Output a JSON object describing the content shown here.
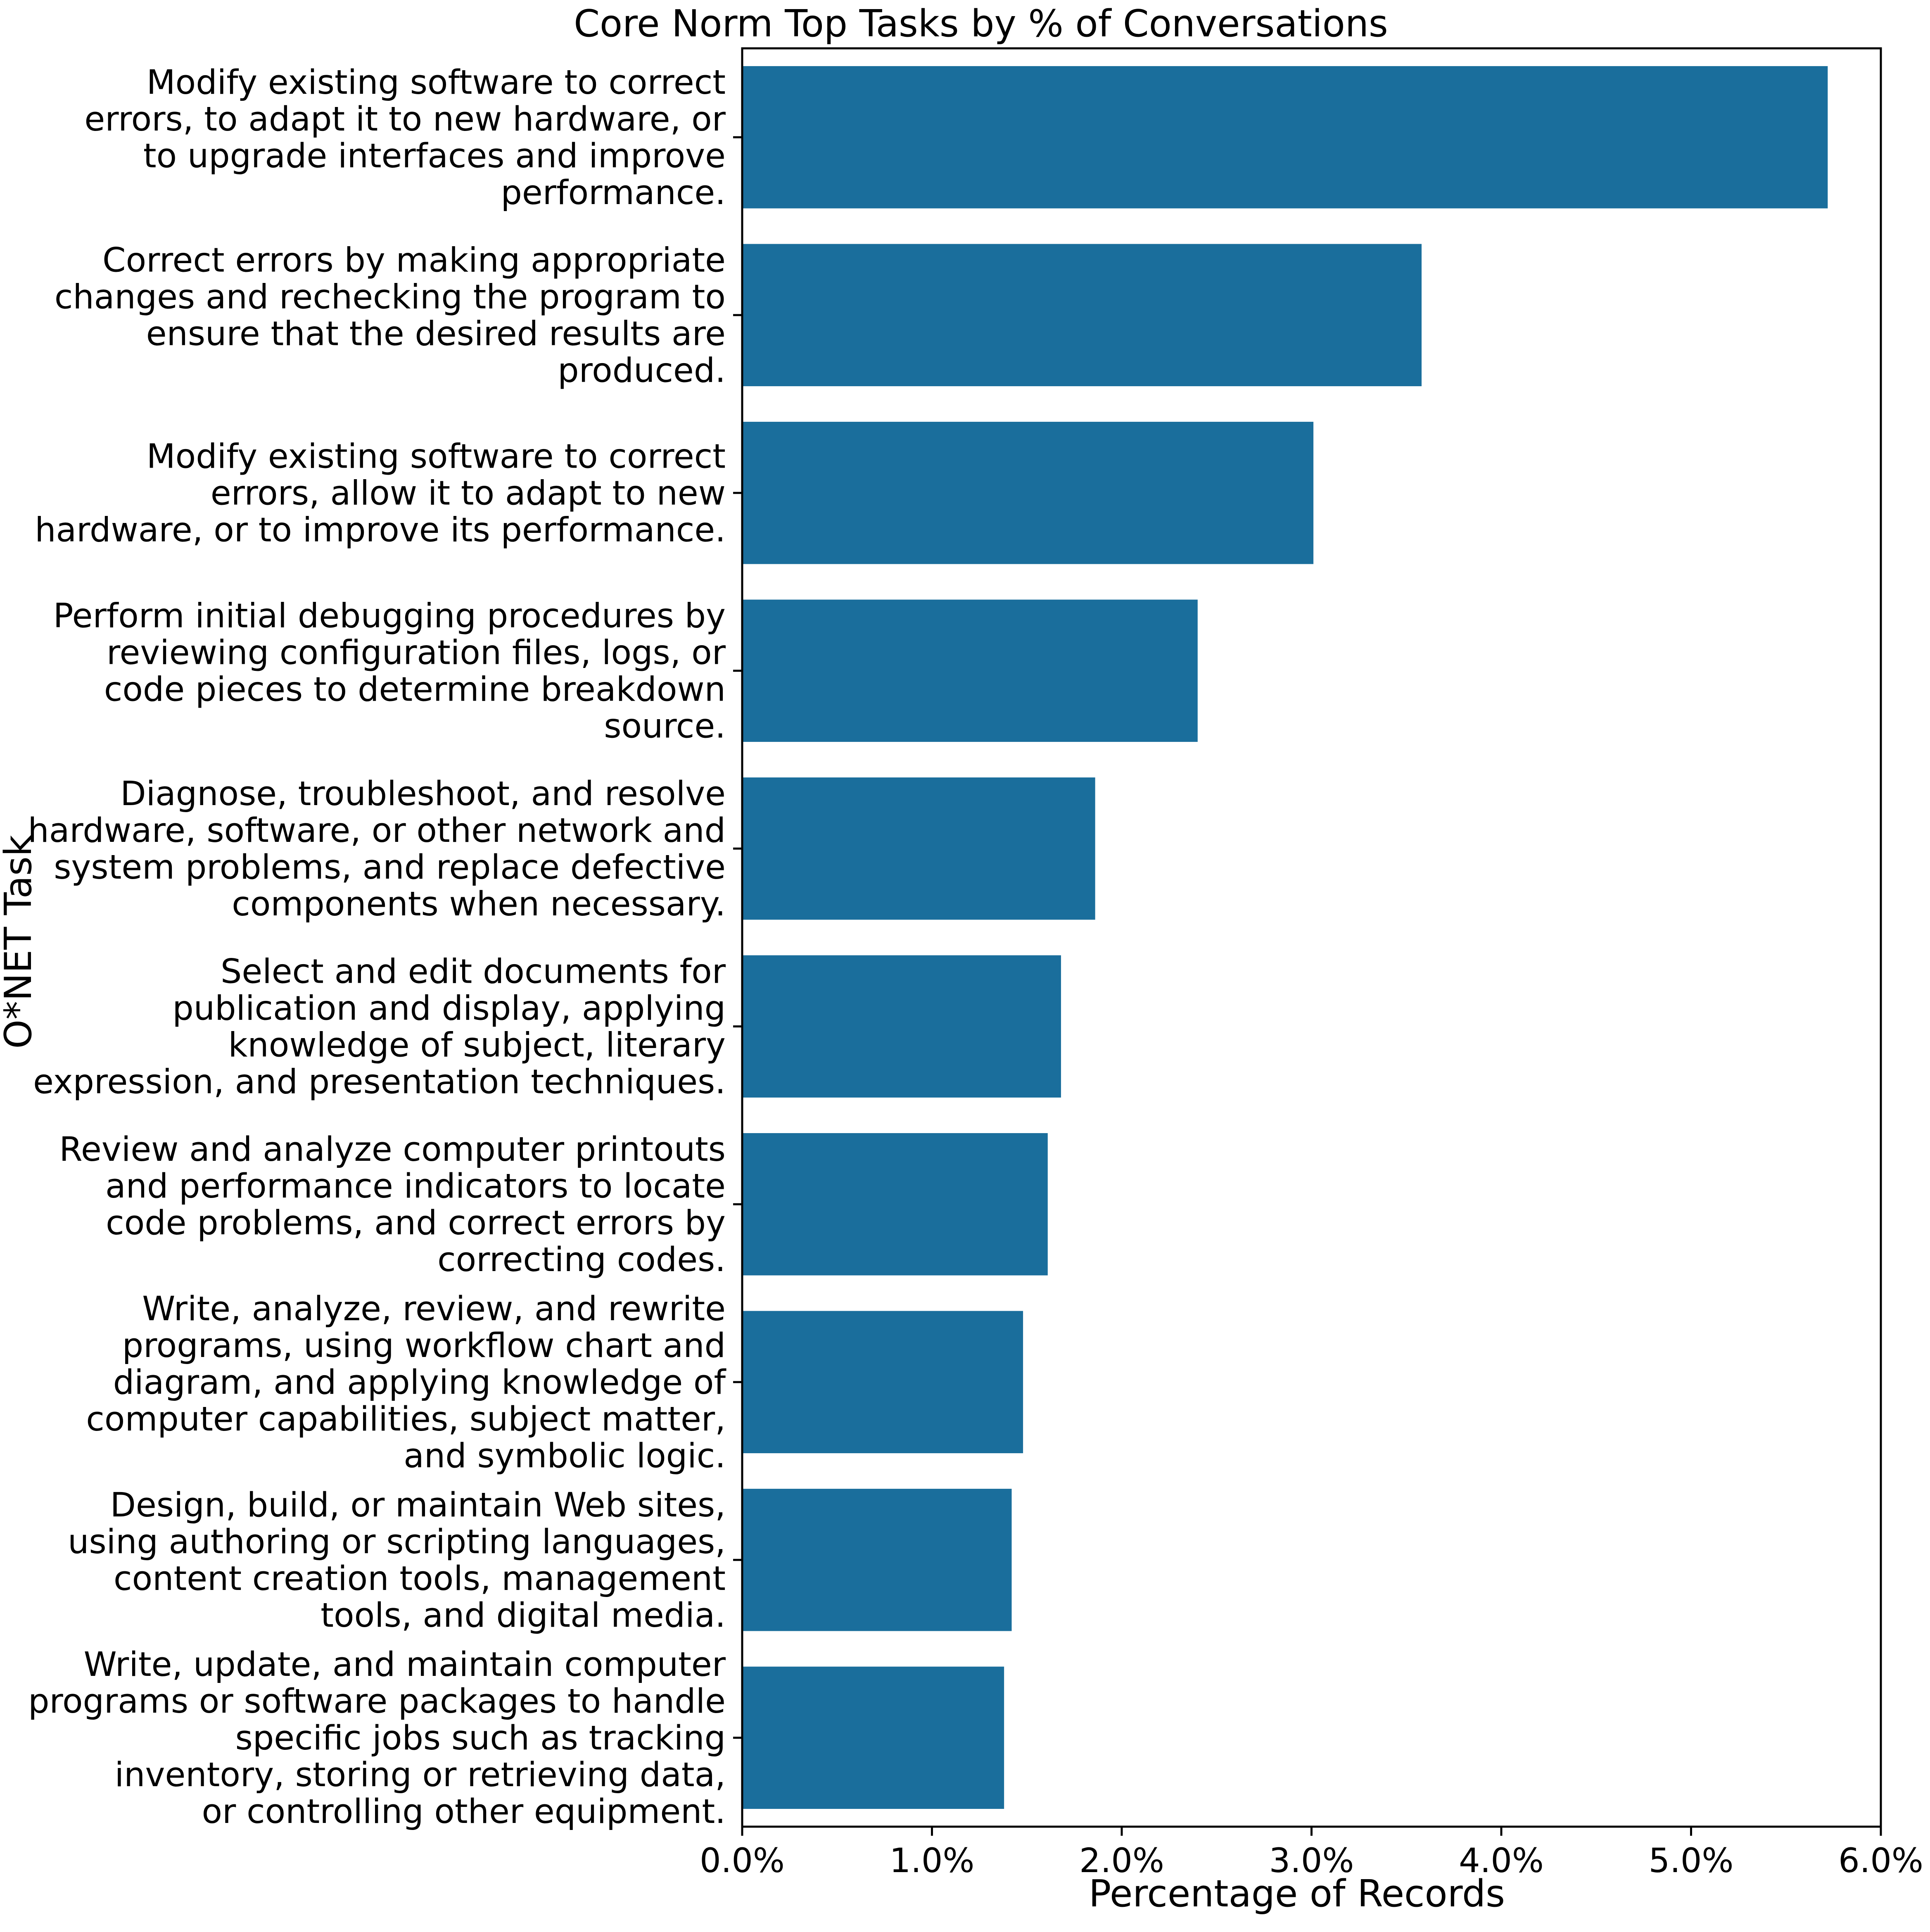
{
  "chart_data": {
    "type": "bar",
    "orientation": "horizontal",
    "title": "Core Norm Top Tasks by % of Conversations",
    "xlabel": "Percentage of Records",
    "ylabel": "O*NET Task",
    "xlim": [
      0,
      6
    ],
    "x_ticks": [
      "0.0%",
      "1.0%",
      "2.0%",
      "3.0%",
      "4.0%",
      "5.0%",
      "6.0%"
    ],
    "grid": false,
    "bar_color": "#1a6e9c",
    "categories": [
      [
        "Modify existing software to correct",
        "errors, to adapt it to new hardware, or",
        "to upgrade interfaces and improve",
        "performance."
      ],
      [
        "Correct errors by making appropriate",
        "changes and rechecking the program to",
        "ensure that the desired results are",
        "produced."
      ],
      [
        "Modify existing software to correct",
        "errors, allow it to adapt to new",
        "hardware, or to improve its performance."
      ],
      [
        "Perform initial debugging procedures by",
        "reviewing configuration files, logs, or",
        "code pieces to determine breakdown",
        "source."
      ],
      [
        "Diagnose, troubleshoot, and resolve",
        "hardware, software, or other network and",
        "system problems, and replace defective",
        "components when necessary."
      ],
      [
        "Select and edit documents for",
        "publication and display, applying",
        "knowledge of subject, literary",
        "expression, and presentation techniques."
      ],
      [
        "Review and analyze computer printouts",
        "and performance indicators to locate",
        "code problems, and correct errors by",
        "correcting codes."
      ],
      [
        "Write, analyze, review, and rewrite",
        "programs, using workflow chart and",
        "diagram, and applying knowledge of",
        "computer capabilities, subject matter,",
        "and symbolic logic."
      ],
      [
        "Design, build, or maintain Web sites,",
        "using authoring or scripting languages,",
        "content creation tools, management",
        "tools, and digital media."
      ],
      [
        "Write, update, and maintain computer",
        "programs or software packages to handle",
        "specific jobs such as tracking",
        "inventory, storing or retrieving data,",
        "or controlling other equipment."
      ]
    ],
    "values": [
      5.72,
      3.58,
      3.01,
      2.4,
      1.86,
      1.68,
      1.61,
      1.48,
      1.42,
      1.38
    ]
  }
}
